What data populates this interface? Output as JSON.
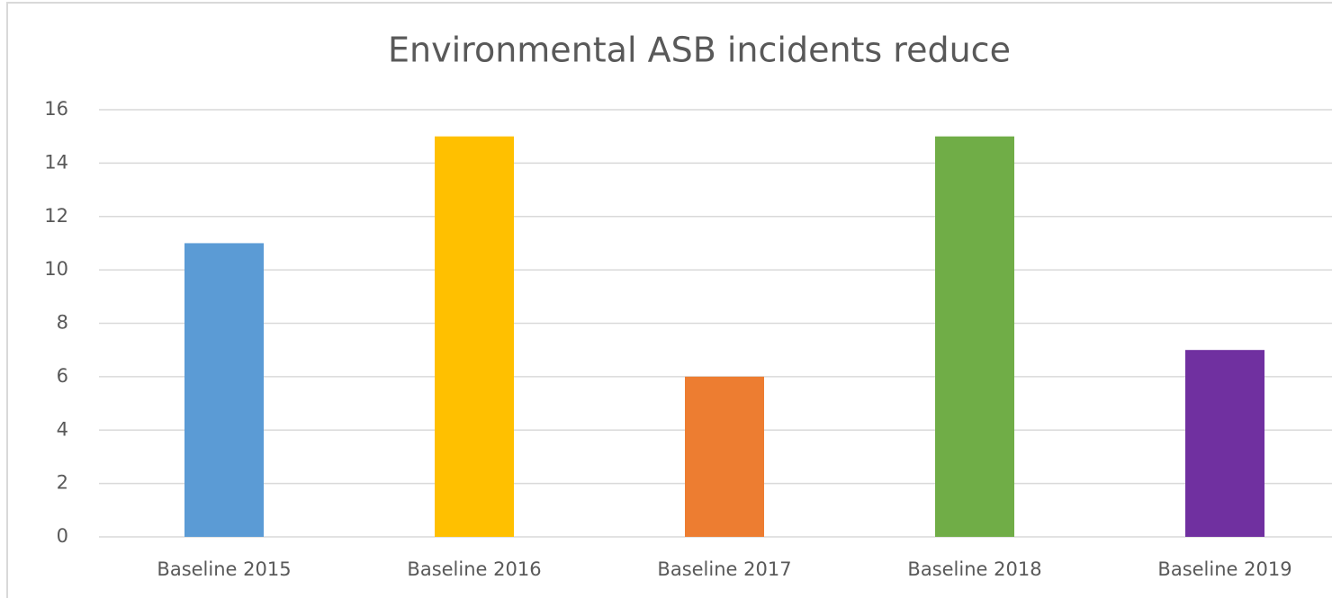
{
  "chart_data": {
    "type": "bar",
    "title": "Environmental ASB incidents reduce",
    "categories": [
      "Baseline 2015",
      "Baseline 2016",
      "Baseline 2017",
      "Baseline 2018",
      "Baseline 2019"
    ],
    "values": [
      11,
      15,
      6,
      15,
      7
    ],
    "colors": [
      "#5b9bd5",
      "#ffc000",
      "#ed7d31",
      "#70ad47",
      "#7030a0"
    ],
    "ylim": [
      0,
      16
    ],
    "yticks": [
      0,
      2,
      4,
      6,
      8,
      10,
      12,
      14,
      16
    ],
    "grid": true
  }
}
